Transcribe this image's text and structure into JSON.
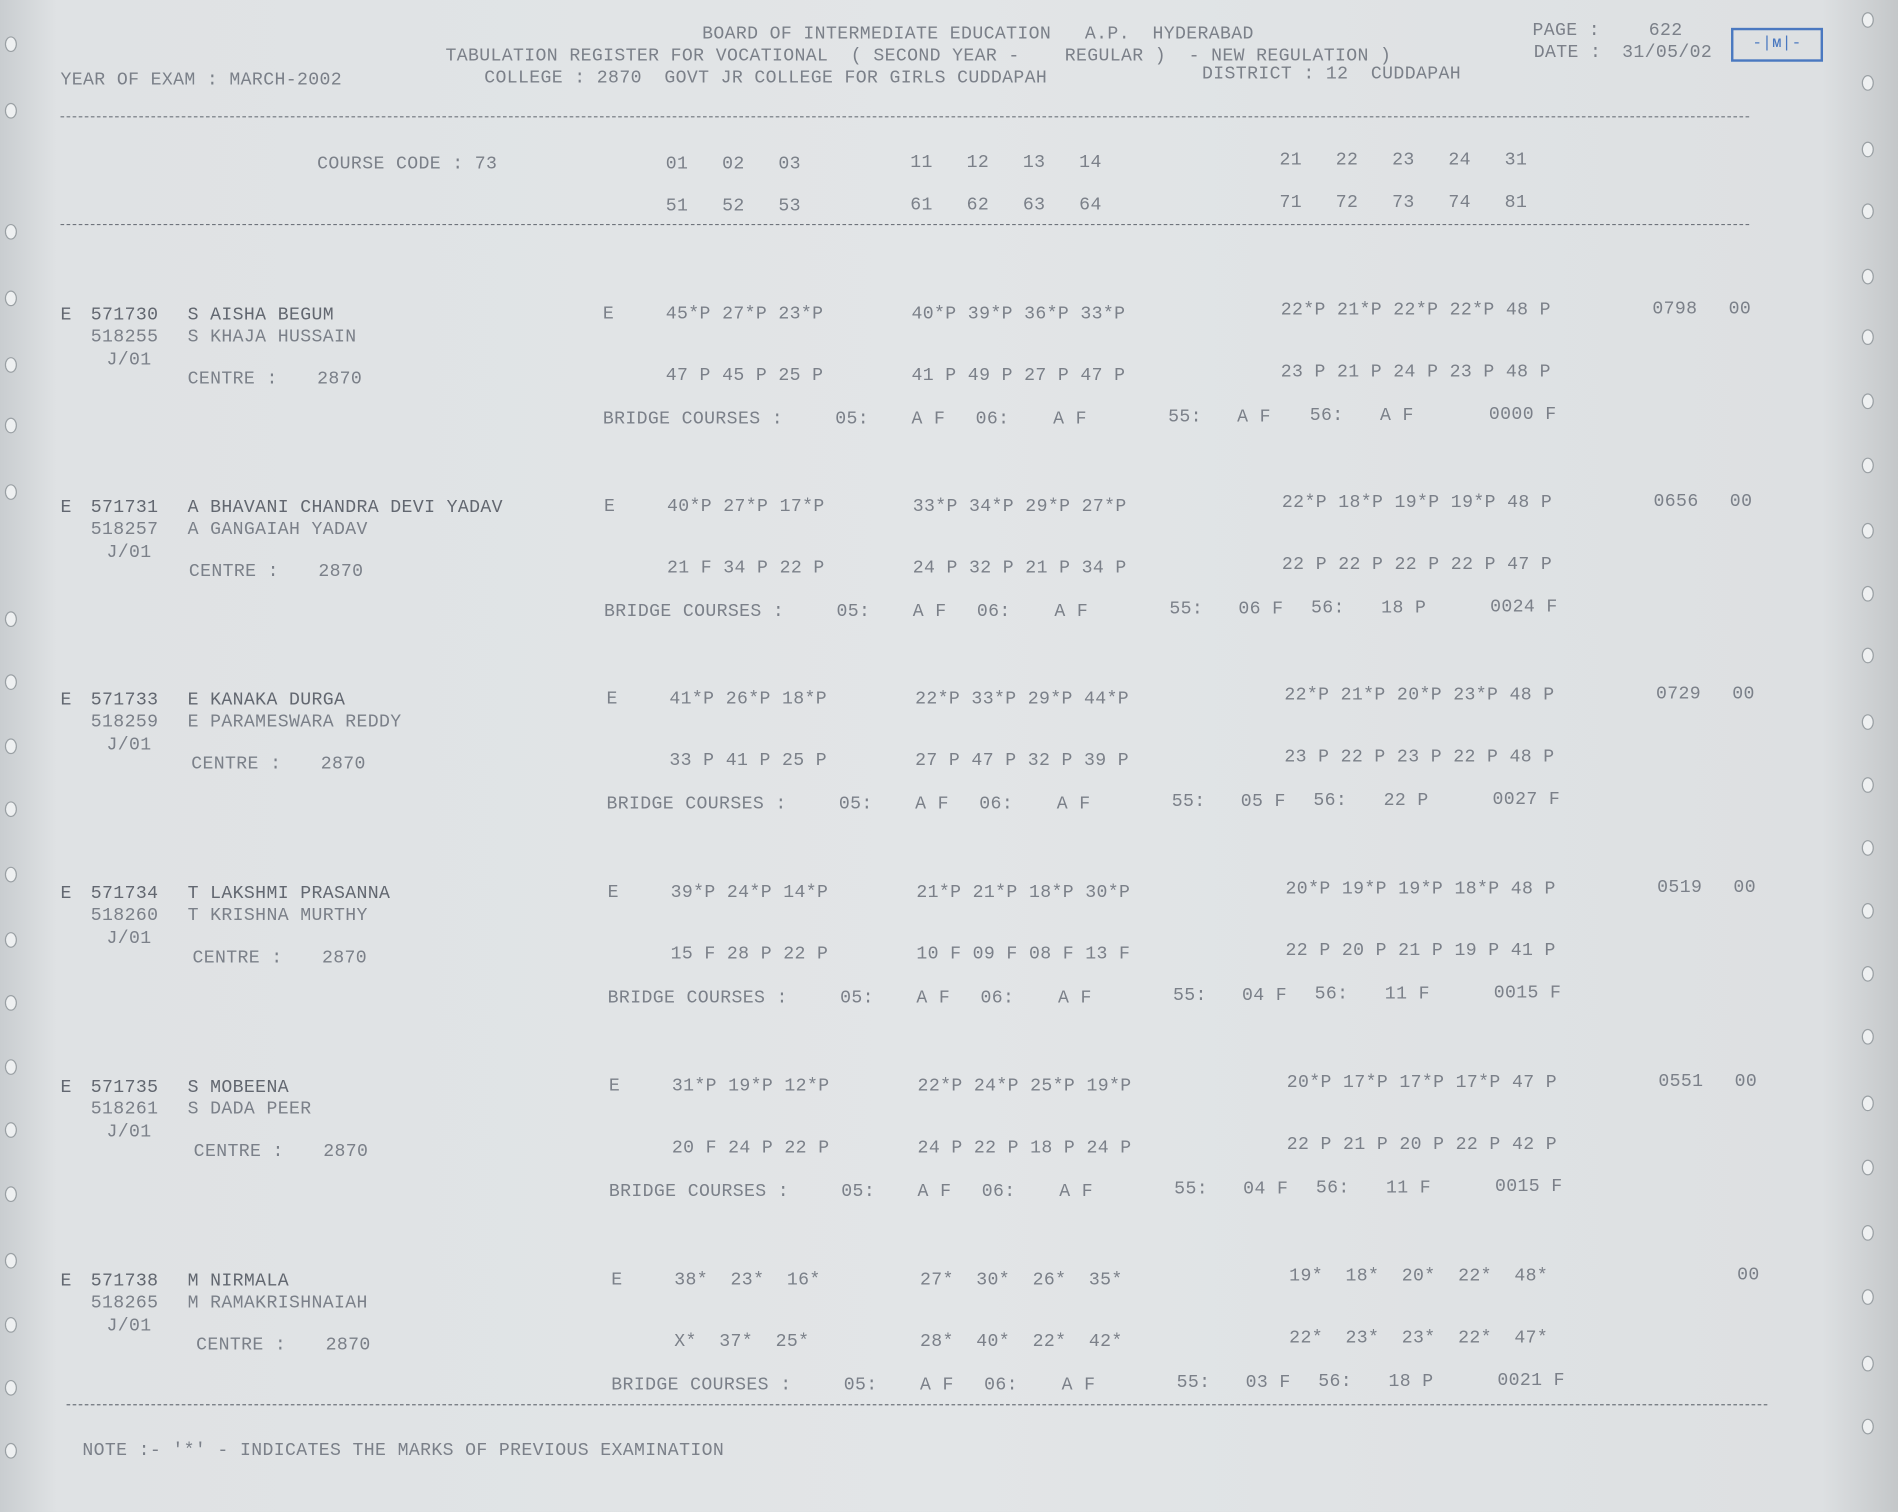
{
  "header": {
    "line1": "BOARD OF INTERMEDIATE EDUCATION   A.P.  HYDERABAD",
    "line2": "TABULATION REGISTER FOR VOCATIONAL  ( SECOND YEAR -    REGULAR )  - NEW REGULATION )",
    "year_of_exam": "YEAR OF EXAM : MARCH-2002",
    "college": "COLLEGE : 2870  GOVT JR COLLEGE FOR GIRLS CUDDAPAH",
    "district": "DISTRICT : 12  CUDDAPAH",
    "page_label": "PAGE :",
    "page": "622",
    "date_label": "DATE :",
    "date": "31/05/02"
  },
  "course_header": {
    "label": "COURSE CODE : 73",
    "row1": {
      "g1": "01   02   03",
      "g2": "11   12   13   14",
      "g3": "21   22   23   24   31"
    },
    "row2": {
      "g1": "51   52   53",
      "g2": "61   62   63   64",
      "g3": "71   72   73   74   81"
    }
  },
  "bridge_label": "BRIDGE COURSES :",
  "centre_label": "CENTRE :",
  "students": [
    {
      "serial": "E",
      "hall_ticket": "571730",
      "reg_no": "518255",
      "name": "S AISHA BEGUM",
      "father": "S KHAJA HUSSAIN",
      "code": "J/01",
      "centre": "2870",
      "status": "E",
      "first_year": {
        "g1": "45*P 27*P 23*P",
        "g2": "40*P 39*P 36*P 33*P",
        "g3": "22*P 21*P 22*P 22*P 48 P"
      },
      "second_year": {
        "g1": "47 P 45 P 25 P",
        "g2": "41 P 49 P 27 P 47 P",
        "g3": "23 P 21 P 24 P 23 P 48 P"
      },
      "bridge": {
        "c05": "A F",
        "c06": "A F",
        "c55": "A F",
        "c56": "A F",
        "total": "0000 F"
      },
      "total": "0798",
      "result": "00"
    },
    {
      "serial": "E",
      "hall_ticket": "571731",
      "reg_no": "518257",
      "name": "A BHAVANI CHANDRA DEVI YADAV",
      "father": "A GANGAIAH YADAV",
      "code": "J/01",
      "centre": "2870",
      "status": "E",
      "first_year": {
        "g1": "40*P 27*P 17*P",
        "g2": "33*P 34*P 29*P 27*P",
        "g3": "22*P 18*P 19*P 19*P 48 P"
      },
      "second_year": {
        "g1": "21 F 34 P 22 P",
        "g2": "24 P 32 P 21 P 34 P",
        "g3": "22 P 22 P 22 P 22 P 47 P"
      },
      "bridge": {
        "c05": "A F",
        "c06": "A F",
        "c55": "06 F",
        "c56": "18 P",
        "total": "0024 F"
      },
      "total": "0656",
      "result": "00"
    },
    {
      "serial": "E",
      "hall_ticket": "571733",
      "reg_no": "518259",
      "name": "E KANAKA DURGA",
      "father": "E PARAMESWARA REDDY",
      "code": "J/01",
      "centre": "2870",
      "status": "E",
      "first_year": {
        "g1": "41*P 26*P 18*P",
        "g2": "22*P 33*P 29*P 44*P",
        "g3": "22*P 21*P 20*P 23*P 48 P"
      },
      "second_year": {
        "g1": "33 P 41 P 25 P",
        "g2": "27 P 47 P 32 P 39 P",
        "g3": "23 P 22 P 23 P 22 P 48 P"
      },
      "bridge": {
        "c05": "A F",
        "c06": "A F",
        "c55": "05 F",
        "c56": "22 P",
        "total": "0027 F"
      },
      "total": "0729",
      "result": "00"
    },
    {
      "serial": "E",
      "hall_ticket": "571734",
      "reg_no": "518260",
      "name": "T LAKSHMI PRASANNA",
      "father": "T KRISHNA MURTHY",
      "code": "J/01",
      "centre": "2870",
      "status": "E",
      "first_year": {
        "g1": "39*P 24*P 14*P",
        "g2": "21*P 21*P 18*P 30*P",
        "g3": "20*P 19*P 19*P 18*P 48 P"
      },
      "second_year": {
        "g1": "15 F 28 P 22 P",
        "g2": "10 F 09 F 08 F 13 F",
        "g3": "22 P 20 P 21 P 19 P 41 P"
      },
      "bridge": {
        "c05": "A F",
        "c06": "A F",
        "c55": "04 F",
        "c56": "11 F",
        "total": "0015 F"
      },
      "total": "0519",
      "result": "00"
    },
    {
      "serial": "E",
      "hall_ticket": "571735",
      "reg_no": "518261",
      "name": "S MOBEENA",
      "father": "S DADA PEER",
      "code": "J/01",
      "centre": "2870",
      "status": "E",
      "first_year": {
        "g1": "31*P 19*P 12*P",
        "g2": "22*P 24*P 25*P 19*P",
        "g3": "20*P 17*P 17*P 17*P 47 P"
      },
      "second_year": {
        "g1": "20 F 24 P 22 P",
        "g2": "24 P 22 P 18 P 24 P",
        "g3": "22 P 21 P 20 P 22 P 42 P"
      },
      "bridge": {
        "c05": "A F",
        "c06": "A F",
        "c55": "04 F",
        "c56": "11 F",
        "total": "0015 F"
      },
      "total": "0551",
      "result": "00"
    },
    {
      "serial": "E",
      "hall_ticket": "571738",
      "reg_no": "518265",
      "name": "M NIRMALA",
      "father": "M RAMAKRISHNAIAH",
      "code": "J/01",
      "centre": "2870",
      "status": "E",
      "first_year": {
        "g1": "38*  23*  16*",
        "g2": "27*  30*  26*  35*",
        "g3": "19*  18*  20*  22*  48*"
      },
      "second_year": {
        "g1": "X*  37*  25*",
        "g2": "28*  40*  22*  42*",
        "g3": "22*  23*  23*  22*  47*"
      },
      "bridge": {
        "c05": "A F",
        "c06": "A F",
        "c55": "03 F",
        "c56": "18 P",
        "total": "0021 F"
      },
      "total": "",
      "result": "00"
    }
  ],
  "note": "NOTE :- '*' - INDICATES THE MARKS OF PREVIOUS EXAMINATION"
}
